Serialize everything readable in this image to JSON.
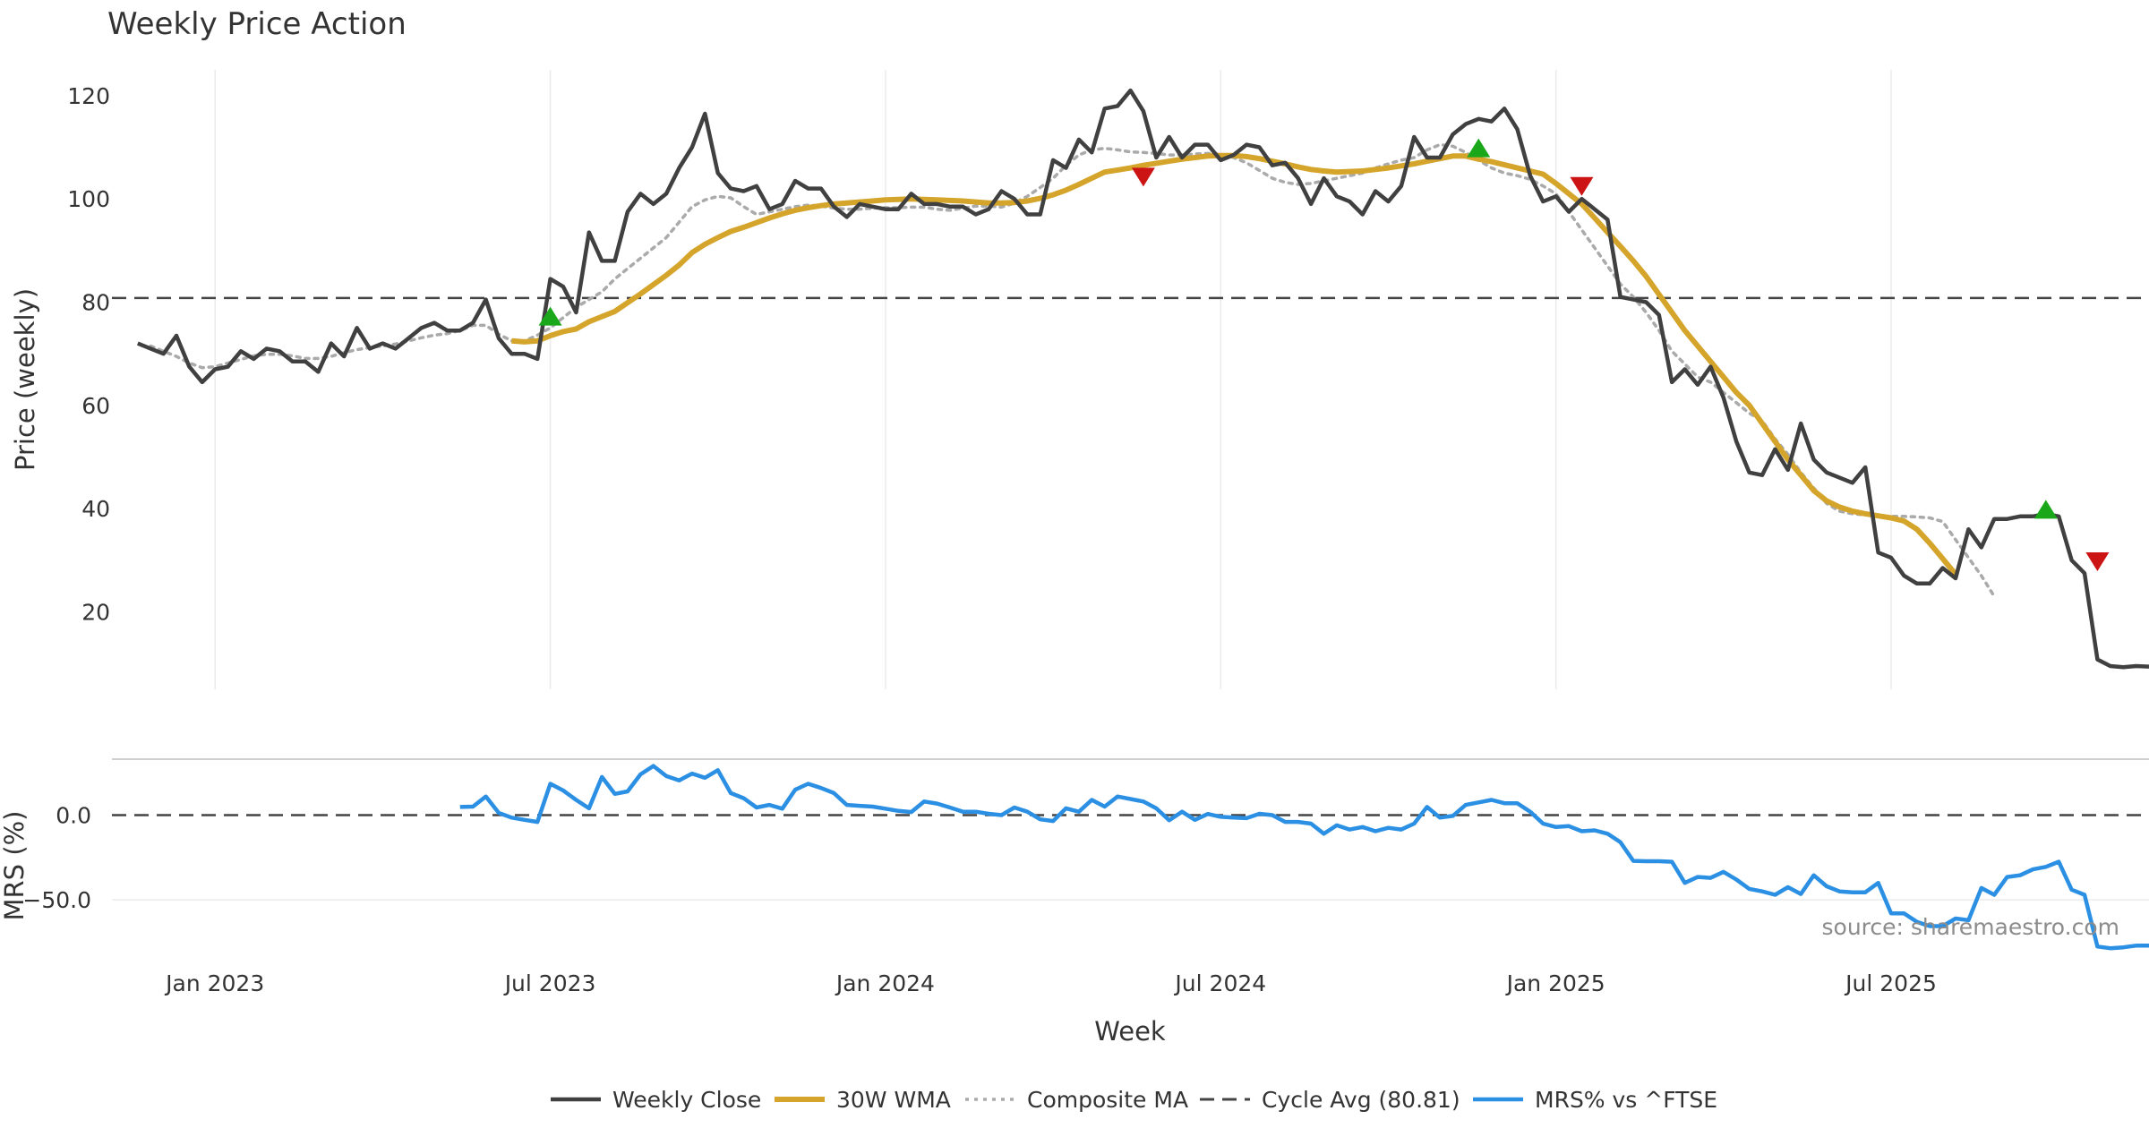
{
  "chart_data": {
    "type": "line",
    "title": "Weekly Price Action",
    "xlabel": "Week",
    "x_ticks": [
      "Jan 2023",
      "Jul 2023",
      "Jan 2024",
      "Jul 2024",
      "Jan 2025",
      "Jul 2025"
    ],
    "x_tick_weeks": [
      6,
      32,
      58,
      84,
      110,
      136
    ],
    "x_range_weeks": [
      -2,
      156
    ],
    "price_panel": {
      "ylabel": "Price (weekly)",
      "ylim": [
        5,
        125
      ],
      "y_ticks": [
        20,
        40,
        60,
        80,
        100,
        120
      ],
      "cycle_avg": 80.81,
      "series": [
        {
          "name": "Weekly Close",
          "color": "#404040",
          "start_week": 0,
          "values": [
            72,
            71,
            70,
            73.5,
            67.5,
            64.5,
            67,
            67.5,
            70.5,
            69,
            71,
            70.5,
            68.5,
            68.5,
            66.5,
            72,
            69.5,
            75,
            71,
            72,
            71,
            73,
            75,
            76,
            74.5,
            74.5,
            76,
            80.5,
            73,
            70,
            70,
            69,
            84.5,
            83,
            78,
            93.5,
            88,
            88,
            97.5,
            101,
            99,
            101,
            106,
            110,
            116.5,
            105,
            102,
            101.5,
            102.5,
            98,
            99,
            103.5,
            102,
            102,
            98.5,
            96.5,
            99,
            98.5,
            98,
            98,
            101,
            99,
            99,
            98.5,
            98.5,
            97,
            98,
            101.5,
            100,
            97,
            97,
            107.5,
            106,
            111.5,
            109,
            117.5,
            118,
            121,
            117,
            108,
            112,
            108,
            110.5,
            110.5,
            107.5,
            108.5,
            110.5,
            110,
            106.5,
            107,
            104,
            99,
            104,
            100.5,
            99.5,
            97,
            101.5,
            99.5,
            102.5,
            112,
            108,
            108,
            112.5,
            114.5,
            115.5,
            115,
            117.5,
            113.5,
            104.5,
            99.5,
            100.5,
            97.5,
            100,
            98,
            96,
            81,
            80.5,
            80,
            77.5,
            64.5,
            67,
            64,
            67.5,
            61.5,
            53,
            47,
            46.5,
            51.5,
            47.5,
            56.5,
            49.5,
            47,
            46,
            45,
            48,
            31.5,
            30.5,
            27,
            25.5,
            25.5,
            28.5,
            26.5,
            36,
            32.5,
            38,
            38,
            38.5,
            38.5,
            39,
            38.5,
            30,
            27.5,
            10.8,
            9.5,
            9.3,
            9.5,
            9.4
          ]
        },
        {
          "name": "30W WMA",
          "color": "#d4a52a",
          "start_week": 29,
          "values": [
            72.5,
            72.3,
            72.5,
            73.5,
            74.3,
            74.8,
            76.2,
            77.2,
            78.2,
            79.9,
            81.6,
            83.4,
            85.2,
            87.2,
            89.6,
            91.2,
            92.5,
            93.7,
            94.5,
            95.4,
            96.3,
            97.1,
            97.8,
            98.3,
            98.7,
            99,
            99.2,
            99.4,
            99.6,
            99.8,
            99.9,
            100,
            99.9,
            99.8,
            99.7,
            99.6,
            99.4,
            99.2,
            99.2,
            99.3,
            99.6,
            100.1,
            100.8,
            101.7,
            102.8,
            104,
            105.2,
            105.6,
            106,
            106.5,
            106.9,
            107.3,
            107.7,
            108,
            108.3,
            108.4,
            108.4,
            108.2,
            107.8,
            107.3,
            106.8,
            106.2,
            105.7,
            105.4,
            105.2,
            105.3,
            105.4,
            105.7,
            106,
            106.4,
            106.8,
            107.3,
            107.8,
            108.3,
            108.3,
            107.7,
            107.2,
            106.6,
            106,
            105.4,
            104.8,
            103,
            101,
            99,
            96.3,
            93.5,
            90.8,
            88,
            85,
            81.5,
            78,
            74.5,
            71.5,
            68.5,
            65.5,
            62.5,
            60,
            56.5,
            53,
            49.5,
            46.5,
            43.5,
            41.5,
            40.3,
            39.5,
            39,
            38.6,
            38.2,
            37.6,
            36,
            33.3,
            30.3,
            27.3
          ]
        },
        {
          "name": "Composite MA",
          "color": "#aaaaaa",
          "start_week": 1,
          "values": [
            71.5,
            70.5,
            69.5,
            68.2,
            67.3,
            67.5,
            68.2,
            68.9,
            69.6,
            69.9,
            69.9,
            69.6,
            69.1,
            69.1,
            69.5,
            70.2,
            70.8,
            71.2,
            71.5,
            71.9,
            72.5,
            73.1,
            73.6,
            73.9,
            74.5,
            75.5,
            75.5,
            73.8,
            72.5,
            72.5,
            73.6,
            75,
            77,
            79,
            80.5,
            82,
            84.5,
            86.5,
            88.5,
            90.5,
            92.5,
            95.5,
            98.5,
            99.8,
            100.5,
            100.2,
            98.5,
            97,
            97.5,
            98,
            98.5,
            98.8,
            98.6,
            98.2,
            98,
            98,
            98.2,
            98.3,
            98.3,
            98.4,
            98.4,
            98,
            97.8,
            98.2,
            98.6,
            98.6,
            98.4,
            99.2,
            100.5,
            102.2,
            104,
            106.5,
            108.5,
            109.5,
            109.8,
            109.5,
            109.1,
            109,
            108.8,
            108.5,
            108.5,
            108.7,
            108.8,
            108.6,
            108,
            107,
            105.5,
            104,
            103.2,
            102.8,
            103,
            103.5,
            104,
            104.5,
            105,
            106,
            106.8,
            107.5,
            108,
            109.5,
            110.5,
            110.2,
            109,
            107.5,
            106,
            105,
            104.5,
            103.8,
            102.5,
            101,
            97.5,
            94,
            90.5,
            87,
            83.5,
            81,
            78,
            74.5,
            70.5,
            68,
            65.5,
            64.5,
            62.5,
            60.5,
            58.5,
            57,
            53.5,
            50.5,
            47,
            44,
            41,
            39.5,
            39,
            38.8,
            38.6,
            38.5,
            38.5,
            38.4,
            38.2,
            37.5,
            34,
            30.5,
            27,
            23
          ]
        },
        {
          "name": "Cycle Avg (80.81)",
          "color": "#444444"
        }
      ],
      "signals_up": [
        {
          "week": 32,
          "price": 77.2
        },
        {
          "week": 104,
          "price": 109.8
        },
        {
          "week": 148,
          "price": 39.8
        }
      ],
      "signals_down": [
        {
          "week": 78,
          "price": 104.3
        },
        {
          "week": 112,
          "price": 102.5
        },
        {
          "week": 152,
          "price": 29.8
        }
      ]
    },
    "mrs_panel": {
      "ylabel": "MRS (%)",
      "ylim": [
        -80,
        33
      ],
      "y_ticks": [
        0,
        -50
      ],
      "y_tick_labels": [
        "0.0",
        "−50.0"
      ],
      "series": [
        {
          "name": "MRS% vs ^FTSE",
          "color": "#2b8fe3",
          "start_week": 25,
          "values": [
            4.8,
            5,
            11,
            1.3,
            -1.5,
            -2.8,
            -4,
            18.5,
            14.5,
            9,
            4,
            22.5,
            12.5,
            14,
            24,
            29,
            23,
            20.5,
            24.5,
            22,
            26.5,
            13,
            10,
            4.5,
            6,
            3.8,
            15,
            18.5,
            16,
            13,
            6,
            5.5,
            5,
            3.8,
            2.5,
            1.8,
            8,
            6.8,
            4.5,
            2,
            2,
            0.8,
            0,
            4.5,
            2,
            -2.5,
            -3.5,
            4,
            2,
            9,
            5,
            11,
            9.5,
            8,
            4,
            -3,
            2,
            -2.8,
            0.7,
            -1,
            -1.5,
            -1.8,
            0.8,
            0,
            -4,
            -4,
            -5,
            -11,
            -6,
            -8.5,
            -7,
            -9.5,
            -7.5,
            -8.5,
            -5,
            4.8,
            -1.5,
            -0.5,
            6,
            7.5,
            9,
            7,
            7,
            2,
            -5,
            -7,
            -6.5,
            -9.5,
            -9,
            -11,
            -16,
            -27,
            -27.2,
            -27.2,
            -27.5,
            -40,
            -36.5,
            -37,
            -33.5,
            -38,
            -43.5,
            -45,
            -47,
            -42.5,
            -46.5,
            -35.5,
            -42,
            -45,
            -45.5,
            -45.5,
            -40,
            -58,
            -58,
            -63,
            -65.5,
            -65.5,
            -61,
            -62,
            -43,
            -47,
            -36.5,
            -35.5,
            -32,
            -30.5,
            -27.5,
            -44,
            -47,
            -77.5,
            -78.5,
            -78,
            -77,
            -77
          ]
        }
      ]
    },
    "legend": {
      "position": "bottom",
      "entries": [
        "Weekly Close",
        "30W WMA",
        "Composite MA",
        "Cycle Avg (80.81)",
        "MRS% vs ^FTSE"
      ]
    },
    "annotation": "source: sharemaestro.com"
  }
}
